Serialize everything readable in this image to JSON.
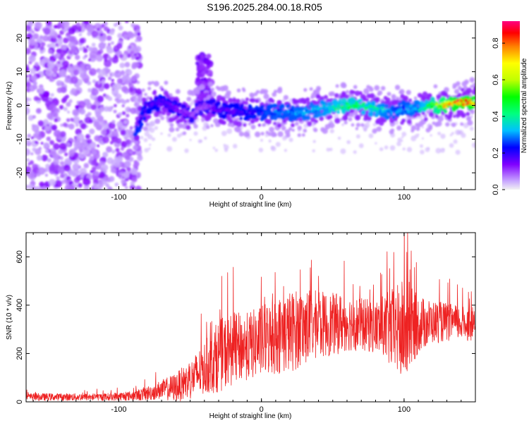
{
  "figure": {
    "title": "S196.2025.284.00.18.R05"
  },
  "colorbar": {
    "label": "Normalized spectral amplitude",
    "range": [
      0,
      0.92
    ],
    "ticks": [
      "0.0",
      "0.2",
      "0.4",
      "0.6",
      "0.8"
    ],
    "tick_values": [
      0,
      0.2,
      0.4,
      0.6,
      0.8
    ],
    "colors": [
      "#f2f2f2",
      "#8000ff",
      "#0000ff",
      "#00c0ff",
      "#00ff80",
      "#00ff00",
      "#c0ff00",
      "#ffff00",
      "#ff8000",
      "#ff0000",
      "#ff0080"
    ]
  },
  "chart_data": [
    {
      "type": "heatmap",
      "title": "",
      "xlabel": "Height of straight line (km)",
      "ylabel": "Frequency (Hz)",
      "xlim": [
        -165,
        150
      ],
      "ylim": [
        -25,
        25
      ],
      "xticks": [
        -100,
        0,
        100
      ],
      "xtick_labels": [
        "-100",
        "0",
        "100"
      ],
      "yticks": [
        -20,
        -10,
        0,
        10,
        20
      ],
      "ytick_labels": [
        "-20",
        "-10",
        "0",
        "10",
        "20"
      ],
      "noise_region": {
        "x": [
          -165,
          -85
        ],
        "y": [
          -25,
          25
        ]
      },
      "plume": {
        "x": [
          -45,
          -35
        ],
        "y": [
          0,
          15
        ]
      },
      "ridge": {
        "x": [
          -88,
          -80,
          -70,
          -60,
          -50,
          -40,
          -30,
          -20,
          -10,
          0,
          10,
          20,
          30,
          40,
          50,
          60,
          70,
          80,
          90,
          100,
          110,
          120,
          130,
          140,
          150
        ],
        "freq": [
          -7,
          0,
          1,
          -1,
          -3,
          0,
          -1,
          -2,
          -2,
          -2,
          -2,
          -2,
          -2,
          -1,
          -1,
          0,
          0,
          -1,
          -2,
          -1,
          -1,
          0,
          0,
          1,
          1
        ],
        "peak_amplitude": [
          0.25,
          0.2,
          0.2,
          0.15,
          0.12,
          0.1,
          0.18,
          0.2,
          0.22,
          0.25,
          0.3,
          0.3,
          0.32,
          0.35,
          0.42,
          0.5,
          0.45,
          0.4,
          0.32,
          0.3,
          0.35,
          0.55,
          0.75,
          0.9,
          0.85
        ]
      }
    },
    {
      "type": "line",
      "title": "",
      "xlabel": "Height of straight line (km)",
      "ylabel": "SNR (10 * v/v)",
      "xlim": [
        -165,
        150
      ],
      "ylim": [
        0,
        700
      ],
      "xticks": [
        -100,
        0,
        100
      ],
      "xtick_labels": [
        "-100",
        "0",
        "100"
      ],
      "yticks": [
        0,
        200,
        400,
        600
      ],
      "ytick_labels": [
        "0",
        "200",
        "400",
        "600"
      ],
      "color": "#ee2222",
      "series": [
        {
          "name": "SNR",
          "x": [
            -165,
            -150,
            -130,
            -110,
            -90,
            -80,
            -70,
            -60,
            -50,
            -40,
            -30,
            -20,
            -10,
            0,
            10,
            20,
            30,
            40,
            50,
            60,
            70,
            80,
            90,
            100,
            110,
            120,
            130,
            140,
            150
          ],
          "mean": [
            20,
            20,
            20,
            20,
            25,
            35,
            50,
            60,
            90,
            140,
            190,
            220,
            230,
            250,
            270,
            290,
            310,
            320,
            320,
            330,
            320,
            310,
            300,
            290,
            320,
            330,
            330,
            325,
            320
          ],
          "spread": [
            15,
            15,
            15,
            15,
            20,
            30,
            40,
            60,
            80,
            110,
            150,
            150,
            140,
            150,
            160,
            170,
            160,
            140,
            130,
            120,
            110,
            110,
            160,
            220,
            120,
            90,
            80,
            70,
            70
          ]
        }
      ]
    }
  ]
}
